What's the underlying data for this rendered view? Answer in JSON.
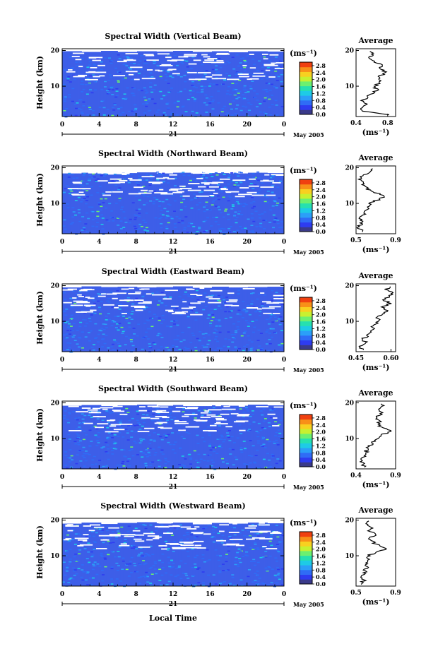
{
  "figure": {
    "xlabel": "Local Time",
    "ylabel": "Height (km)",
    "day_label": "21",
    "date_label": "May 2005",
    "avg_title": "Average",
    "colorbar_unit": "(ms⁻¹)",
    "colorbar_ticks": [
      "0.0",
      "0.4",
      "0.8",
      "1.2",
      "1.6",
      "2.0",
      "2.4",
      "2.8"
    ],
    "colormap": [
      "#3a3a8a",
      "#2e3cf0",
      "#2f6cf6",
      "#2b9ff8",
      "#1ecbe6",
      "#26e0b0",
      "#6cf070",
      "#c8f030",
      "#f8d020",
      "#f89018",
      "#f04010"
    ],
    "bg_color": "#3d5ee8"
  },
  "chart_data": [
    {
      "type": "heatmap",
      "title": "Spectral Width (Vertical Beam)",
      "x": [
        0,
        4,
        8,
        12,
        16,
        20,
        0
      ],
      "x_range": [
        0,
        24
      ],
      "y_ticks": [
        10,
        20
      ],
      "y_range": [
        1.5,
        20.5
      ],
      "data_top_km": [
        19.8,
        19.6,
        19.9,
        19.6,
        19.8,
        19.7,
        19.9,
        19.6,
        19.8,
        19.5,
        19.8,
        19.7
      ],
      "average_profile": {
        "x_ticks": [
          "0.4",
          "0.8"
        ],
        "x_range": [
          0.4,
          0.9
        ],
        "height_km": [
          2,
          3,
          4,
          5,
          6,
          7,
          8,
          9,
          10,
          11,
          12,
          13,
          14,
          15,
          16,
          17,
          18,
          19,
          20
        ],
        "value_ms": [
          0.8,
          0.5,
          0.46,
          0.52,
          0.48,
          0.55,
          0.6,
          0.66,
          0.64,
          0.7,
          0.67,
          0.72,
          0.78,
          0.7,
          0.74,
          0.62,
          0.56,
          0.62,
          0.58
        ]
      }
    },
    {
      "type": "heatmap",
      "title": "Spectral Width (Northward Beam)",
      "x": [
        0,
        4,
        8,
        12,
        16,
        20,
        0
      ],
      "x_range": [
        0,
        24
      ],
      "y_ticks": [
        10,
        20
      ],
      "y_range": [
        1.5,
        20.5
      ],
      "data_top_km": [
        18.4,
        18.6,
        18.3,
        18.5,
        18.7,
        18.4,
        18.6,
        18.3,
        18.5,
        18.4,
        18.6,
        18.5
      ],
      "average_profile": {
        "x_ticks": [
          "0.5",
          "0.9"
        ],
        "x_range": [
          0.5,
          0.9
        ],
        "height_km": [
          2,
          3,
          4,
          5,
          6,
          7,
          8,
          9,
          10,
          11,
          12,
          13,
          14,
          15,
          16,
          17,
          18,
          19,
          20
        ],
        "value_ms": [
          0.58,
          0.52,
          0.54,
          0.56,
          0.55,
          0.58,
          0.6,
          0.62,
          0.64,
          0.72,
          0.8,
          0.7,
          0.62,
          0.58,
          0.56,
          0.54,
          0.58,
          0.65,
          0.68
        ]
      }
    },
    {
      "type": "heatmap",
      "title": "Spectral Width (Eastward Beam)",
      "x": [
        0,
        4,
        8,
        12,
        16,
        20,
        0
      ],
      "x_range": [
        0,
        24
      ],
      "y_ticks": [
        10,
        20
      ],
      "y_range": [
        1.5,
        20.5
      ],
      "data_top_km": [
        19.5,
        19.8,
        19.6,
        19.7,
        19.5,
        19.6,
        19.8,
        19.4,
        19.7,
        19.5,
        19.6,
        19.7
      ],
      "average_profile": {
        "x_ticks": [
          "0.45",
          "0.60"
        ],
        "x_range": [
          0.45,
          0.62
        ],
        "height_km": [
          2,
          3,
          4,
          5,
          6,
          7,
          8,
          9,
          10,
          11,
          12,
          13,
          14,
          15,
          16,
          17,
          18,
          19,
          20
        ],
        "value_ms": [
          0.48,
          0.47,
          0.49,
          0.48,
          0.5,
          0.51,
          0.52,
          0.53,
          0.55,
          0.54,
          0.57,
          0.59,
          0.56,
          0.6,
          0.57,
          0.59,
          0.61,
          0.58,
          0.6
        ]
      }
    },
    {
      "type": "heatmap",
      "title": "Spectral Width (Southward Beam)",
      "x": [
        0,
        4,
        8,
        12,
        16,
        20,
        0
      ],
      "x_range": [
        0,
        24
      ],
      "y_ticks": [
        10,
        20
      ],
      "y_range": [
        1.5,
        20.5
      ],
      "data_top_km": [
        19.2,
        19.4,
        19.1,
        19.3,
        19.5,
        19.2,
        19.4,
        19.1,
        19.3,
        19.2,
        19.5,
        19.3
      ],
      "average_profile": {
        "x_ticks": [
          "0.4",
          "0.9"
        ],
        "x_range": [
          0.4,
          0.9
        ],
        "height_km": [
          2,
          3,
          4,
          5,
          6,
          7,
          8,
          9,
          10,
          11,
          12,
          13,
          14,
          15,
          16,
          17,
          18,
          19,
          20
        ],
        "value_ms": [
          0.52,
          0.48,
          0.46,
          0.5,
          0.52,
          0.54,
          0.58,
          0.62,
          0.66,
          0.72,
          0.86,
          0.74,
          0.66,
          0.7,
          0.64,
          0.72,
          0.68,
          0.74,
          0.7
        ]
      }
    },
    {
      "type": "heatmap",
      "title": "Spectral Width (Westward Beam)",
      "x": [
        0,
        4,
        8,
        12,
        16,
        20,
        0
      ],
      "x_range": [
        0,
        24
      ],
      "y_ticks": [
        10,
        20
      ],
      "y_range": [
        1.5,
        20.5
      ],
      "data_top_km": [
        19.0,
        19.3,
        18.9,
        19.2,
        19.4,
        19.1,
        19.3,
        18.8,
        19.2,
        19.0,
        19.3,
        19.1
      ],
      "average_profile": {
        "x_ticks": [
          "0.5",
          "0.9"
        ],
        "x_range": [
          0.5,
          0.9
        ],
        "height_km": [
          2,
          3,
          4,
          5,
          6,
          7,
          8,
          9,
          10,
          11,
          12,
          13,
          14,
          15,
          16,
          17,
          18,
          19,
          20
        ],
        "value_ms": [
          0.55,
          0.58,
          0.56,
          0.6,
          0.57,
          0.62,
          0.6,
          0.64,
          0.62,
          0.7,
          0.82,
          0.72,
          0.66,
          0.64,
          0.7,
          0.62,
          0.66,
          0.6,
          0.64
        ]
      }
    }
  ]
}
